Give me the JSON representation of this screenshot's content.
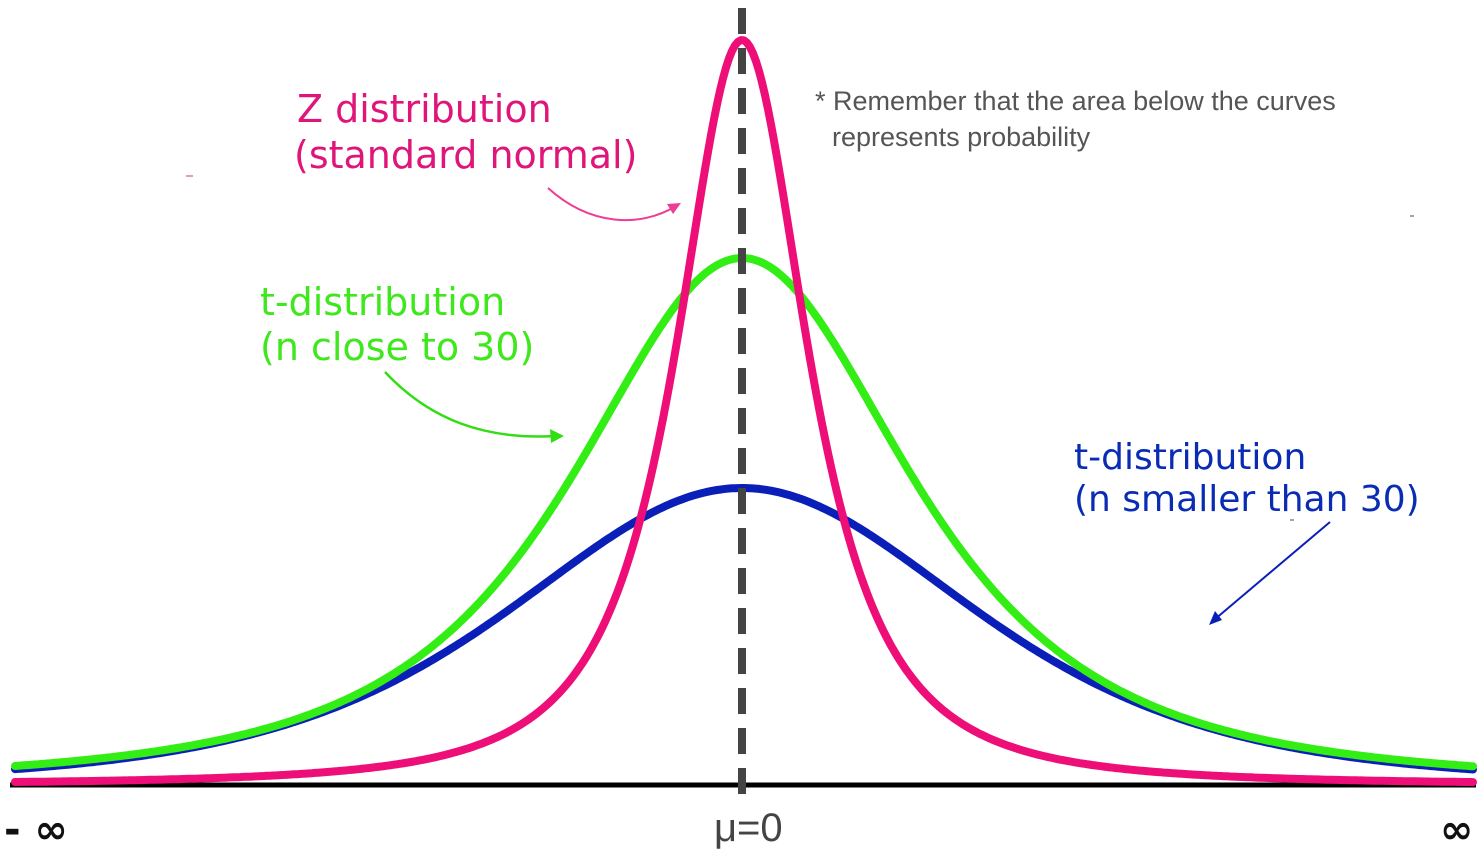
{
  "labels": {
    "z_line1": "Z distribution",
    "z_line2": "(standard normal)",
    "t30_line1": "t-distribution",
    "t30_line2": "(n close to 30)",
    "tsmall_line1": "t-distribution",
    "tsmall_line2": "(n smaller than 30)",
    "note_line1": "* Remember that the area below the curves",
    "note_line2": "represents probability",
    "mean": "μ=0",
    "neg_inf": "- ∞",
    "pos_inf": "∞"
  },
  "colors": {
    "z": "#ee0e78",
    "t30": "#33ee14",
    "tsmall": "#0a1fb8",
    "axis": "#000000",
    "mean_line": "#444444"
  }
}
